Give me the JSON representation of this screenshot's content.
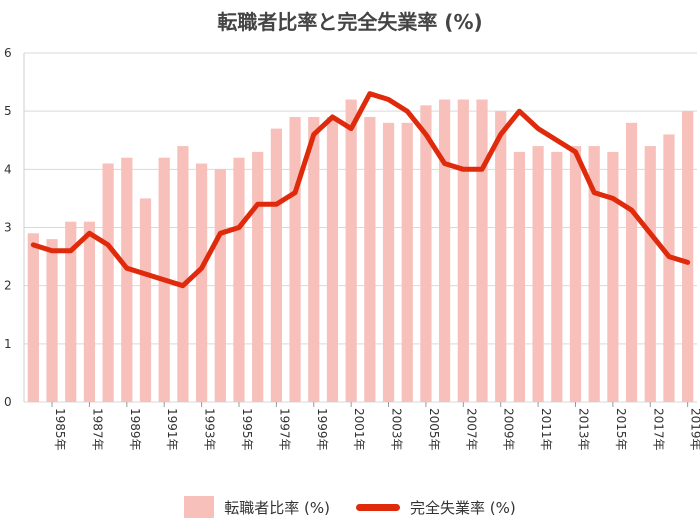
{
  "chart_data": {
    "type": "bar+line",
    "title": "転職者比率と完全失業率 (%)",
    "years": [
      "1984",
      "1985",
      "1986",
      "1987",
      "1988",
      "1989",
      "1990",
      "1991",
      "1992",
      "1993",
      "1994",
      "1995",
      "1996",
      "1997",
      "1998",
      "1999",
      "2000",
      "2001",
      "2002",
      "2003",
      "2004",
      "2005",
      "2006",
      "2007",
      "2008",
      "2009",
      "2010",
      "2011",
      "2012",
      "2013",
      "2014",
      "2015",
      "2016",
      "2017",
      "2018",
      "2019"
    ],
    "x_tick_labels": [
      "1985年",
      "1987年",
      "1989年",
      "1991年",
      "1993年",
      "1995年",
      "1997年",
      "1999年",
      "2001年",
      "2003年",
      "2005年",
      "2007年",
      "2009年",
      "2011年",
      "2013年",
      "2015年",
      "2017年",
      "2019年"
    ],
    "ylim": [
      0,
      6
    ],
    "y_ticks": [
      "0",
      "1",
      "2",
      "3",
      "4",
      "5",
      "6"
    ],
    "grid": true,
    "legend_position": "bottom",
    "series": [
      {
        "name": "転職者比率 (%)",
        "type": "bar",
        "color": "#f7c0bb",
        "values": [
          2.9,
          2.8,
          3.1,
          3.1,
          4.1,
          4.2,
          3.5,
          4.2,
          4.4,
          4.1,
          4.0,
          4.2,
          4.3,
          4.7,
          4.9,
          4.9,
          4.9,
          5.2,
          4.9,
          4.8,
          4.8,
          5.1,
          5.2,
          5.2,
          5.2,
          5.0,
          4.3,
          4.4,
          4.3,
          4.4,
          4.4,
          4.3,
          4.8,
          4.4,
          4.6,
          5.0
        ]
      },
      {
        "name": "完全失業率 (%)",
        "type": "line",
        "color": "#e02a0c",
        "values": [
          2.7,
          2.6,
          2.6,
          2.9,
          2.7,
          2.3,
          2.2,
          2.1,
          2.0,
          2.3,
          2.9,
          3.0,
          3.4,
          3.4,
          3.6,
          4.6,
          4.9,
          4.7,
          5.3,
          5.2,
          5.0,
          4.6,
          4.1,
          4.0,
          4.0,
          4.6,
          5.0,
          4.7,
          4.5,
          4.3,
          3.6,
          3.5,
          3.3,
          2.9,
          2.5,
          2.4
        ]
      }
    ]
  }
}
